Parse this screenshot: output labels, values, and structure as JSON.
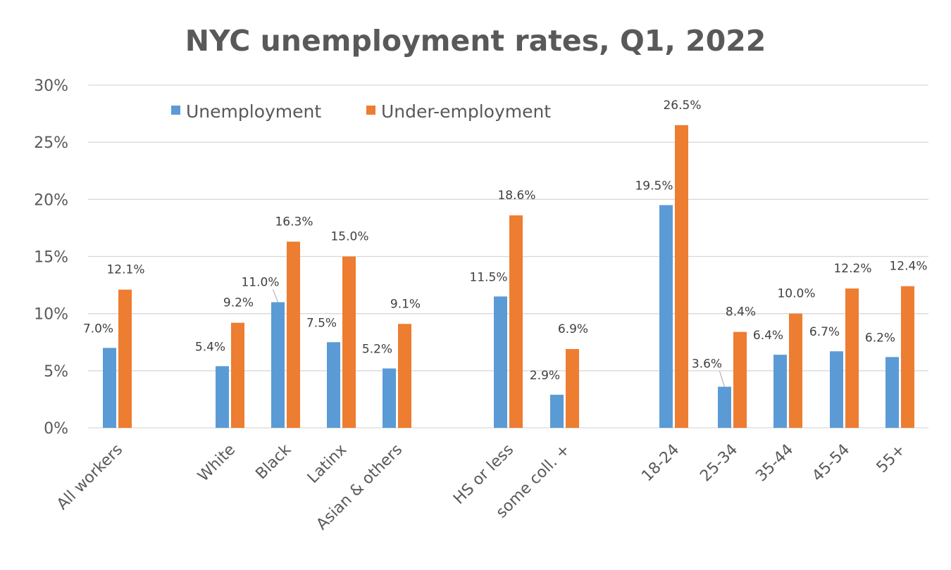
{
  "chart_data": {
    "type": "bar",
    "title": "NYC unemployment rates, Q1, 2022",
    "xlabel": "",
    "ylabel": "",
    "ylim": [
      0,
      30
    ],
    "yticks": [
      "0%",
      "5%",
      "10%",
      "15%",
      "20%",
      "25%",
      "30%"
    ],
    "ytick_values": [
      0,
      5,
      10,
      15,
      20,
      25,
      30
    ],
    "grid": true,
    "legend_position": "top-left",
    "categories": [
      "All workers",
      "White",
      "Black",
      "Latinx",
      "Asian & others",
      "HS or less",
      "some coll. +",
      "18-24",
      "25-34",
      "35-44",
      "45-54",
      "55+"
    ],
    "groups": [
      0,
      1,
      1,
      1,
      1,
      2,
      2,
      3,
      3,
      3,
      3,
      3
    ],
    "series": [
      {
        "name": "Unemployment",
        "color": "#5B9BD5",
        "values": [
          7.0,
          5.4,
          11.0,
          7.5,
          5.2,
          11.5,
          2.9,
          19.5,
          3.6,
          6.4,
          6.7,
          6.2
        ],
        "labels": [
          "7.0%",
          "5.4%",
          "11.0%",
          "7.5%",
          "5.2%",
          "11.5%",
          "2.9%",
          "19.5%",
          "3.6%",
          "6.4%",
          "6.7%",
          "6.2%"
        ]
      },
      {
        "name": "Under-employment",
        "color": "#ED7D31",
        "values": [
          12.1,
          9.2,
          16.3,
          15.0,
          9.1,
          18.6,
          6.9,
          26.5,
          8.4,
          10.0,
          12.2,
          12.4
        ],
        "labels": [
          "12.1%",
          "9.2%",
          "16.3%",
          "15.0%",
          "9.1%",
          "18.6%",
          "6.9%",
          "26.5%",
          "8.4%",
          "10.0%",
          "12.2%",
          "12.4%"
        ]
      }
    ],
    "colors": {
      "gridline": "#D9D9D9",
      "axis_text": "#595959",
      "leader_line": "#A6A6A6"
    }
  }
}
